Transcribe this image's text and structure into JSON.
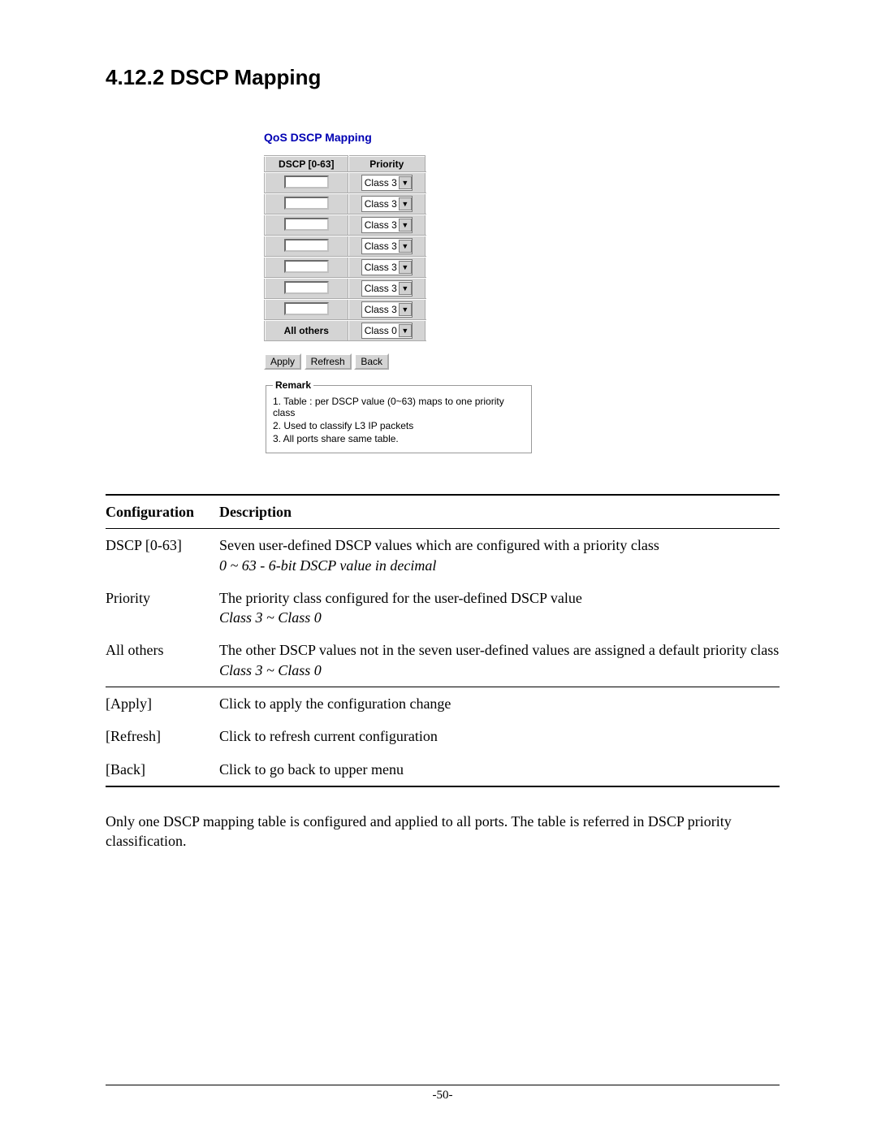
{
  "page": {
    "section_title": "4.12.2 DSCP Mapping",
    "footer": "-50-"
  },
  "embed": {
    "title": "QoS DSCP Mapping",
    "table": {
      "header_dscp": "DSCP [0-63]",
      "header_priority": "Priority",
      "rows": [
        {
          "dscp": "",
          "priority": "Class 3"
        },
        {
          "dscp": "",
          "priority": "Class 3"
        },
        {
          "dscp": "",
          "priority": "Class 3"
        },
        {
          "dscp": "",
          "priority": "Class 3"
        },
        {
          "dscp": "",
          "priority": "Class 3"
        },
        {
          "dscp": "",
          "priority": "Class 3"
        },
        {
          "dscp": "",
          "priority": "Class 3"
        }
      ],
      "all_others_label": "All others",
      "all_others_priority": "Class 0"
    },
    "buttons": {
      "apply": "Apply",
      "refresh": "Refresh",
      "back": "Back"
    },
    "remark": {
      "legend": "Remark",
      "lines": [
        "1. Table : per DSCP value (0~63) maps to one priority class",
        "2. Used to classify L3 IP packets",
        "3. All ports share same table."
      ]
    }
  },
  "doc": {
    "header_config": "Configuration",
    "header_desc": "Description",
    "rows1": [
      {
        "name": "DSCP [0-63]",
        "desc": "Seven user-defined DSCP values which are configured with a priority class",
        "desc_italic": "0 ~ 63 - 6-bit DSCP value in decimal"
      },
      {
        "name": "Priority",
        "desc": "The priority class configured for the user-defined DSCP value",
        "desc_italic": "Class 3 ~ Class 0"
      },
      {
        "name": "All others",
        "desc": "The other DSCP values not in the seven user-defined values are assigned a default priority class",
        "desc_italic": "Class 3 ~ Class 0"
      }
    ],
    "rows2": [
      {
        "name": "[Apply]",
        "desc": "Click to apply the configuration change"
      },
      {
        "name": "[Refresh]",
        "desc": "Click to refresh current configuration"
      },
      {
        "name": "[Back]",
        "desc": "Click to go back to upper menu"
      }
    ]
  },
  "paragraph": "Only one DSCP mapping table is configured and applied to all ports. The table is referred in DSCP priority classification."
}
